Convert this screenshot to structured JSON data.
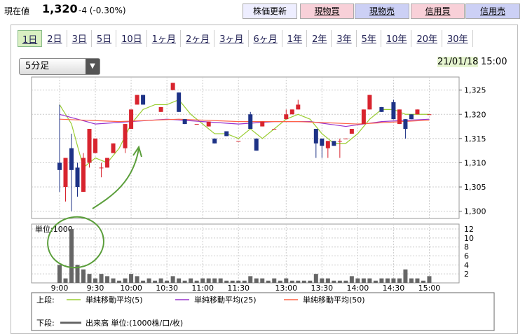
{
  "header": {
    "label": "現在値",
    "price": "1,320",
    "change": "-4 (-0.30%)",
    "buttons": [
      "株価更新",
      "現物買",
      "現物売",
      "信用買",
      "信用売"
    ]
  },
  "tabs": [
    "1日",
    "2日",
    "3日",
    "5日",
    "10日",
    "1ヶ月",
    "2ヶ月",
    "3ヶ月",
    "6ヶ月",
    "1年",
    "2年",
    "3年",
    "5年",
    "10年",
    "20年",
    "30年"
  ],
  "interval": "5分足",
  "date": "21/01/18",
  "time": "15:00",
  "legend": {
    "upper_label": "上段:",
    "lower_label": "下段:",
    "volume_label": "出来高 単位:(1000株/口/枚)"
  },
  "chart_data": [
    {
      "type": "candlestick",
      "up_color": "#d8242e",
      "down_color": "#1d3286",
      "x": [
        0,
        1,
        2,
        3,
        4,
        5,
        6,
        7,
        8,
        9,
        11,
        12,
        13,
        14,
        17,
        19,
        20,
        21,
        23,
        25,
        26,
        28,
        30,
        32,
        33,
        34,
        36,
        38,
        39,
        40,
        43,
        44,
        45,
        46,
        47,
        48,
        49,
        51,
        52,
        54,
        56,
        57,
        58,
        59,
        60,
        62
      ],
      "open": [
        1310,
        1305,
        1313,
        1309,
        1304,
        1310,
        1312,
        1309,
        1309,
        1312,
        1313,
        1317,
        1322,
        1324,
        1320.5,
        1325,
        1324.5,
        1319,
        1318,
        1317.5,
        1315,
        1316.5,
        1314.5,
        1320,
        1315,
        1317.5,
        1317,
        1319,
        1320,
        1321,
        1317,
        1315,
        1313,
        1314.5,
        1314.5,
        1315,
        1316,
        1318,
        1321,
        1321.5,
        1322.5,
        1318,
        1319,
        1320,
        1320,
        1320
      ],
      "high": [
        1322,
        1311,
        1316,
        1310,
        1312,
        1317,
        1315,
        1310,
        1311,
        1314,
        1318,
        1321,
        1324,
        1324,
        1321.5,
        1326.5,
        1324.5,
        1319,
        1318,
        1318.5,
        1315,
        1316.5,
        1314.5,
        1320.5,
        1315,
        1318.5,
        1317,
        1321,
        1321,
        1323,
        1317,
        1315,
        1314.5,
        1314.5,
        1315,
        1315,
        1317,
        1321,
        1324,
        1321.5,
        1323,
        1321,
        1319,
        1320,
        1321,
        1320
      ],
      "low": [
        1304,
        1302,
        1300,
        1303,
        1304,
        1309,
        1312,
        1307,
        1309,
        1312,
        1312,
        1317,
        1322,
        1322,
        1320.5,
        1325,
        1320.5,
        1318,
        1318,
        1317.5,
        1314,
        1315.5,
        1314.5,
        1317,
        1312.5,
        1317.5,
        1317,
        1319,
        1320,
        1321,
        1311,
        1311,
        1311,
        1313.5,
        1311,
        1315,
        1316,
        1318,
        1321,
        1320.5,
        1319,
        1318,
        1315,
        1319,
        1320,
        1320
      ],
      "close": [
        1308.5,
        1311,
        1308.5,
        1305,
        1311,
        1317,
        1315,
        1309,
        1311,
        1314,
        1318,
        1321,
        1324,
        1322,
        1321.5,
        1326.5,
        1320.5,
        1318,
        1318,
        1318.5,
        1314,
        1315.5,
        1314.5,
        1317,
        1312.5,
        1318.5,
        1317,
        1320,
        1321,
        1322,
        1314,
        1313.5,
        1314.5,
        1313.5,
        1314.5,
        1315,
        1317,
        1321,
        1324,
        1320.5,
        1319,
        1321,
        1317,
        1319,
        1321,
        1320
      ],
      "lines": [
        {
          "name": "単純移動平均(5)",
          "color": "#9acd32",
          "x": [
            0,
            2,
            4,
            6,
            8,
            10,
            12,
            14,
            16,
            18,
            20,
            22,
            24,
            26,
            28,
            30,
            32,
            34,
            36,
            38,
            40,
            42,
            44,
            46,
            48,
            50,
            52,
            54,
            56,
            58,
            60,
            62
          ],
          "values": [
            1322,
            1318,
            1309,
            1311,
            1310,
            1313,
            1318,
            1321,
            1322,
            1322,
            1323,
            1320,
            1318,
            1316,
            1316,
            1315,
            1317,
            1315,
            1317,
            1319,
            1320,
            1319,
            1316,
            1314,
            1314,
            1316,
            1319,
            1321,
            1321,
            1320,
            1320,
            1320
          ]
        },
        {
          "name": "単純移動平均(25)",
          "color": "#9933cc",
          "x": [
            0,
            6,
            12,
            18,
            24,
            30,
            36,
            42,
            48,
            54,
            62
          ],
          "values": [
            1320,
            1318,
            1318.5,
            1319,
            1318.5,
            1318,
            1318.5,
            1318.5,
            1317.5,
            1318.5,
            1319
          ]
        },
        {
          "name": "単純移動平均(50)",
          "color": "#ff6347",
          "x": [
            0,
            10,
            20,
            30,
            40,
            50,
            62
          ],
          "values": [
            1319,
            1318.5,
            1319,
            1318.5,
            1318.5,
            1318,
            1318.8
          ]
        }
      ],
      "ylim": [
        1298.5,
        1327.7
      ],
      "yticks": [
        {
          "value": 1300,
          "label": "1,300"
        },
        {
          "value": 1305,
          "label": "1,305"
        },
        {
          "value": 1310,
          "label": "1,310"
        },
        {
          "value": 1315,
          "label": "1,315"
        },
        {
          "value": 1320,
          "label": "1,320"
        },
        {
          "value": 1325,
          "label": "1,325"
        }
      ],
      "xlim": [
        -4.7,
        67
      ],
      "xticks": [
        {
          "value": 0,
          "label": "9:00"
        },
        {
          "value": 6,
          "label": "9:30"
        },
        {
          "value": 12,
          "label": "10:00"
        },
        {
          "value": 18,
          "label": "10:30"
        },
        {
          "value": 24,
          "label": "11:00"
        },
        {
          "value": 30,
          "label": "11:30"
        },
        {
          "value": 38,
          "label": "13:00"
        },
        {
          "value": 44,
          "label": "13:30"
        },
        {
          "value": 50,
          "label": "14:00"
        },
        {
          "value": 56,
          "label": "14:30"
        },
        {
          "value": 62,
          "label": "15:00"
        }
      ],
      "grid": true
    },
    {
      "type": "bar",
      "name": "出来高",
      "unit_label": "単位:1000",
      "color": "#666666",
      "x": [
        0,
        1,
        2,
        3,
        4,
        5,
        6,
        7,
        8,
        9,
        10,
        11,
        12,
        13,
        14,
        15,
        16,
        17,
        18,
        19,
        20,
        21,
        22,
        23,
        24,
        25,
        26,
        27,
        28,
        29,
        30,
        31,
        32,
        33,
        34,
        35,
        36,
        37,
        38,
        39,
        40,
        41,
        42,
        43,
        44,
        45,
        46,
        47,
        48,
        49,
        50,
        51,
        52,
        53,
        54,
        55,
        56,
        57,
        58,
        59,
        60,
        61,
        62
      ],
      "values": [
        4,
        1,
        12,
        4,
        3,
        2,
        1,
        2,
        1.5,
        1,
        0.5,
        1,
        2,
        1.5,
        0.5,
        1,
        0.5,
        1,
        0.5,
        1.5,
        1,
        0.5,
        1,
        0.5,
        1,
        1,
        1,
        1,
        0.5,
        0.5,
        0.5,
        0.5,
        1.5,
        1,
        1,
        0.5,
        1,
        0.5,
        1,
        0.5,
        0.5,
        0.5,
        0.5,
        2,
        1,
        1,
        0.5,
        0.5,
        0.5,
        1.5,
        1,
        1,
        1,
        0.5,
        1,
        1,
        1,
        1,
        3,
        1,
        1,
        0.5,
        1.5
      ],
      "ylim": [
        0,
        13.1
      ],
      "yticks": [
        2,
        4,
        6,
        8,
        10,
        12
      ],
      "xlim": [
        -4.7,
        67
      ]
    }
  ]
}
